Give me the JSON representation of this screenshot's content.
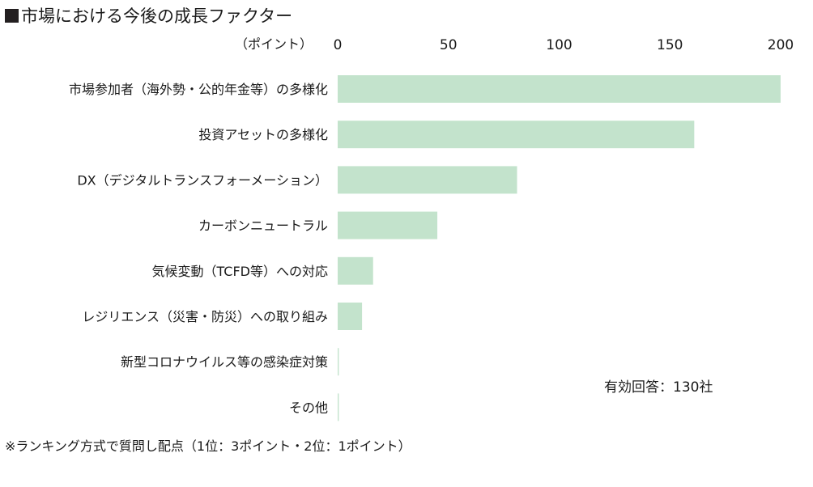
{
  "title": "市場における今後の成長ファクター",
  "footnote": "※ランキング方式で質問し配点（1位：3ポイント・2位：1ポイント）",
  "respondents_note": "有効回答：130社",
  "colors": {
    "bar": "#c3e3cc",
    "text": "#1a1a1a",
    "title_marker": "#231f20"
  },
  "chart_data": {
    "type": "bar",
    "orientation": "horizontal",
    "unit_label": "（ポイント）",
    "categories": [
      "市場参加者（海外勢・公的年金等）の多様化",
      "投資アセットの多様化",
      "DX（デジタルトランスフォーメーション）",
      "カーボンニュートラル",
      "気候変動（TCFD等）への対応",
      "レジリエンス（災害・防災）への取り組み",
      "新型コロナウイルス等の感染症対策",
      "その他"
    ],
    "values": [
      200,
      161,
      81,
      45,
      16,
      11,
      0.5,
      0.5
    ],
    "xlim": [
      0,
      200
    ],
    "xticks": [
      "0",
      "50",
      "100",
      "150",
      "200"
    ],
    "grid": false,
    "legend": "none"
  }
}
